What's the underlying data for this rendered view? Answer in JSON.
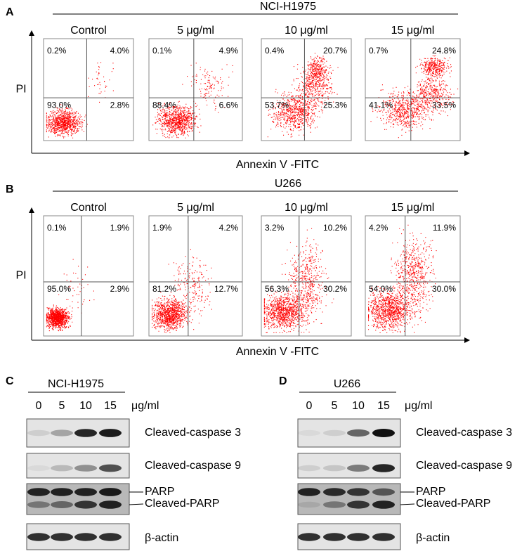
{
  "panels": [
    {
      "label": "A",
      "cell_line": "NCI-H1975",
      "y_label": "PI",
      "x_label": "Annexin V -FITC",
      "plots": [
        {
          "title": "Control",
          "quadrants": [
            "0.2%",
            "4.0%",
            "93.0%",
            "2.8%"
          ]
        },
        {
          "title": "5 μg/ml",
          "quadrants": [
            "0.1%",
            "4.9%",
            "88.4%",
            "6.6%"
          ]
        },
        {
          "title": "10 μg/ml",
          "quadrants": [
            "0.4%",
            "20.7%",
            "53.7%",
            "25.3%"
          ]
        },
        {
          "title": "15 μg/ml",
          "quadrants": [
            "0.7%",
            "24.8%",
            "41.1%",
            "33.5%"
          ]
        }
      ]
    },
    {
      "label": "B",
      "cell_line": "U266",
      "y_label": "PI",
      "x_label": "Annexin V -FITC",
      "plots": [
        {
          "title": "Control",
          "quadrants": [
            "0.1%",
            "1.9%",
            "95.0%",
            "2.9%"
          ]
        },
        {
          "title": "5 μg/ml",
          "quadrants": [
            "1.9%",
            "4.2%",
            "81.2%",
            "12.7%"
          ]
        },
        {
          "title": "10 μg/ml",
          "quadrants": [
            "3.2%",
            "10.2%",
            "56.3%",
            "30.2%"
          ]
        },
        {
          "title": "15 μg/ml",
          "quadrants": [
            "4.2%",
            "11.9%",
            "54.0%",
            "30.0%"
          ]
        }
      ]
    }
  ],
  "blots": [
    {
      "label": "C",
      "cell_line": "NCI-H1975",
      "doses": [
        "0",
        "5",
        "10",
        "15"
      ],
      "unit": "μg/ml",
      "rows": [
        "Cleaved-caspase 3",
        "Cleaved-caspase 9",
        "PARP",
        "Cleaved-PARP",
        "β-actin"
      ]
    },
    {
      "label": "D",
      "cell_line": "U266",
      "doses": [
        "0",
        "5",
        "10",
        "15"
      ],
      "unit": "μg/ml",
      "rows": [
        "Cleaved-caspase 3",
        "Cleaved-caspase 9",
        "PARP",
        "Cleaved-PARP",
        "β-actin"
      ]
    }
  ]
}
